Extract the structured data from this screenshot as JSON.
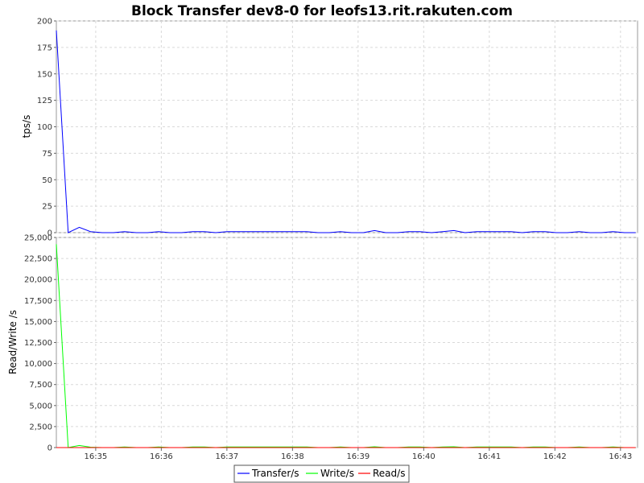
{
  "chart_data": {
    "type": "line",
    "title": "Block Transfer dev8-0 for leofs13.rit.rakuten.com",
    "x_tick_labels": [
      "16:35",
      "16:36",
      "16:37",
      "16:38",
      "16:39",
      "16:40",
      "16:41",
      "16:42",
      "16:43"
    ],
    "x_tick_minutes": [
      35,
      36,
      37,
      38,
      39,
      40,
      41,
      42,
      43
    ],
    "x_domain_minutes": [
      34.4,
      43.26
    ],
    "time_minutes": [
      34.4,
      34.58,
      34.75,
      34.92,
      35.1,
      35.27,
      35.44,
      35.62,
      35.79,
      35.96,
      36.13,
      36.31,
      36.48,
      36.65,
      36.83,
      37.0,
      37.17,
      37.35,
      37.52,
      37.69,
      37.87,
      38.04,
      38.21,
      38.39,
      38.56,
      38.73,
      38.9,
      39.08,
      39.25,
      39.42,
      39.6,
      39.77,
      39.94,
      40.12,
      40.29,
      40.46,
      40.63,
      40.81,
      40.98,
      41.15,
      41.33,
      41.5,
      41.67,
      41.85,
      42.02,
      42.19,
      42.37,
      42.54,
      42.71,
      42.88,
      43.06,
      43.23
    ],
    "grid": true,
    "legend": {
      "position": "bottom",
      "entries": [
        {
          "name": "Transfer/s",
          "color": "#0000ff"
        },
        {
          "name": "Write/s",
          "color": "#00ff00"
        },
        {
          "name": "Read/s",
          "color": "#ff0000"
        }
      ]
    },
    "panels": [
      {
        "ylabel": "tps/s",
        "ylim": [
          0,
          200
        ],
        "yticks": [
          0,
          25,
          50,
          75,
          100,
          125,
          150,
          175,
          200
        ],
        "ytick_labels": [
          "0",
          "25",
          "50",
          "75",
          "100",
          "125",
          "150",
          "175",
          "200"
        ],
        "series": [
          {
            "name": "Transfer/s",
            "color": "#0000ff",
            "values": [
              191,
              0,
              5,
              1,
              0,
              0,
              1,
              0,
              0,
              1,
              0,
              0,
              1,
              1,
              0,
              1,
              1,
              1,
              1,
              1,
              1,
              1,
              1,
              0,
              0,
              1,
              0,
              0,
              2,
              0,
              0,
              1,
              1,
              0,
              1,
              2,
              0,
              1,
              1,
              1,
              1,
              0,
              1,
              1,
              0,
              0,
              1,
              0,
              0,
              1,
              0,
              0
            ]
          }
        ]
      },
      {
        "ylabel": "Read/Write /s",
        "ylim": [
          0,
          25000
        ],
        "yticks": [
          0,
          2500,
          5000,
          7500,
          10000,
          12500,
          15000,
          17500,
          20000,
          22500,
          25000
        ],
        "ytick_labels": [
          "0",
          "2,500",
          "5,000",
          "7,500",
          "10,000",
          "12,500",
          "15,000",
          "17,500",
          "20,000",
          "22,500",
          "25,000"
        ],
        "series": [
          {
            "name": "Write/s",
            "color": "#00ff00",
            "values": [
              24200,
              0,
              250,
              50,
              0,
              0,
              80,
              0,
              0,
              80,
              0,
              0,
              80,
              80,
              0,
              80,
              80,
              80,
              80,
              80,
              80,
              80,
              80,
              0,
              0,
              80,
              0,
              0,
              100,
              0,
              0,
              80,
              80,
              0,
              80,
              100,
              0,
              80,
              80,
              80,
              80,
              0,
              80,
              80,
              0,
              0,
              80,
              0,
              0,
              80,
              0,
              0
            ]
          },
          {
            "name": "Read/s",
            "color": "#ff0000",
            "values": [
              0,
              0,
              0,
              0,
              0,
              0,
              0,
              0,
              0,
              0,
              0,
              0,
              0,
              0,
              0,
              0,
              0,
              0,
              0,
              0,
              0,
              0,
              0,
              0,
              0,
              0,
              0,
              0,
              0,
              0,
              0,
              0,
              0,
              0,
              0,
              0,
              0,
              0,
              0,
              0,
              0,
              0,
              0,
              0,
              0,
              0,
              0,
              0,
              0,
              0,
              0,
              0
            ]
          }
        ]
      }
    ]
  }
}
